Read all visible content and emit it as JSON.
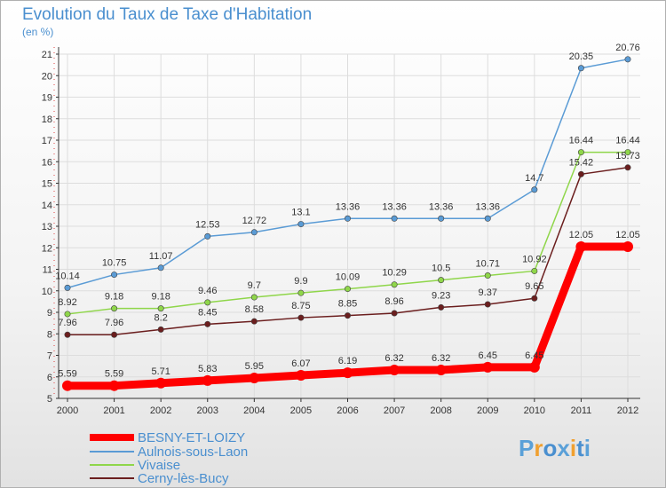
{
  "title": "Evolution du Taux de Taxe d'Habitation",
  "subtitle": "(en %)",
  "logo": {
    "text": "Proxiti",
    "colors": [
      "#5aa0d8",
      "#f0a030",
      "#4a8fcf",
      "#5aa0d8",
      "#f0a030",
      "#4a8fcf",
      "#5aa0d8"
    ]
  },
  "colors": {
    "title": "#4a8fcf",
    "axis": "#333333",
    "grid": "#dddddd"
  },
  "chart_data": {
    "type": "line",
    "title": "Evolution du Taux de Taxe d'Habitation",
    "subtitle": "(en %)",
    "x": [
      "2000",
      "2001",
      "2002",
      "2003",
      "2004",
      "2005",
      "2006",
      "2007",
      "2008",
      "2009",
      "2010",
      "2011",
      "2012"
    ],
    "ylim": [
      5,
      21
    ],
    "yticks": [
      "5",
      "6",
      "7",
      "8",
      "9",
      "10",
      "11",
      "12",
      "13",
      "14",
      "15",
      "16",
      "17",
      "18",
      "19",
      "20",
      "21"
    ],
    "grid": true,
    "legend_position": "bottom-left",
    "series": [
      {
        "name": "BESNY-ET-LOIZY",
        "color": "#ff0000",
        "highlight": true,
        "values": [
          5.59,
          5.59,
          5.71,
          5.83,
          5.95,
          6.07,
          6.19,
          6.32,
          6.32,
          6.45,
          6.45,
          12.05,
          12.05
        ],
        "labels": [
          "5.59",
          "5.59",
          "5.71",
          "5.83",
          "5.95",
          "6.07",
          "6.19",
          "6.32",
          "6.32",
          "6.45",
          "6.45",
          "12.05",
          "12.05"
        ]
      },
      {
        "name": "Aulnois-sous-Laon",
        "color": "#5a9bd5",
        "values": [
          10.14,
          10.75,
          11.07,
          12.53,
          12.72,
          13.1,
          13.36,
          13.36,
          13.36,
          13.36,
          14.7,
          20.35,
          20.76
        ],
        "labels": [
          "10.14",
          "10.75",
          "11.07",
          "12.53",
          "12.72",
          "13.1",
          "13.36",
          "13.36",
          "13.36",
          "13.36",
          "14.7",
          "20.35",
          "20.76"
        ]
      },
      {
        "name": "Vivaise",
        "color": "#8fd64a",
        "values": [
          8.92,
          9.18,
          9.18,
          9.46,
          9.7,
          9.9,
          10.09,
          10.29,
          10.5,
          10.71,
          10.92,
          16.44,
          16.44
        ],
        "labels": [
          "8.92",
          "9.18",
          "9.18",
          "9.46",
          "9.7",
          "9.9",
          "10.09",
          "10.29",
          "10.5",
          "10.71",
          "10.92",
          "16.44",
          "16.44"
        ]
      },
      {
        "name": "Cerny-lès-Bucy",
        "color": "#6b1e1e",
        "values": [
          7.96,
          7.96,
          8.2,
          8.45,
          8.58,
          8.75,
          8.85,
          8.96,
          9.23,
          9.37,
          9.65,
          15.42,
          15.73
        ],
        "labels": [
          "7.96",
          "7.96",
          "8.2",
          "8.45",
          "8.58",
          "8.75",
          "8.85",
          "8.96",
          "9.23",
          "9.37",
          "9.65",
          "15.42",
          "15.73"
        ]
      }
    ]
  }
}
